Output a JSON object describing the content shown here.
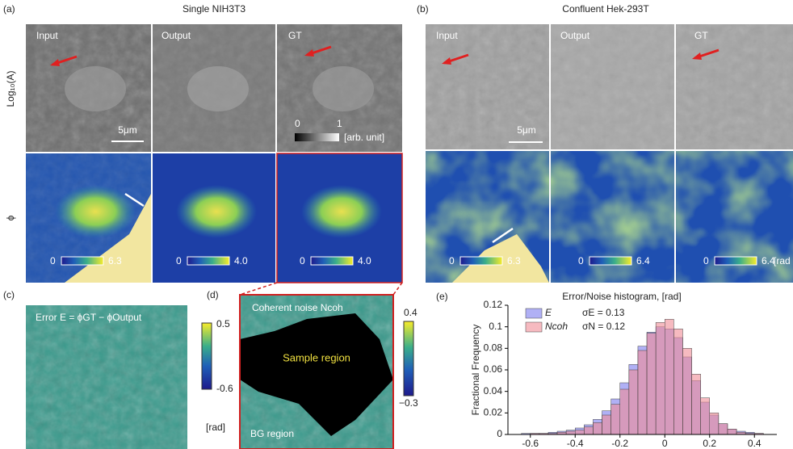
{
  "panel_a": {
    "label": "(a)",
    "title": "Single NIH3T3",
    "columns": [
      "Input",
      "Output",
      "GT"
    ],
    "row_labels": [
      "Log₁₀(A)",
      "ϕ"
    ],
    "scale_bar": "5μm",
    "gray_bar": {
      "min": "0",
      "max": "1",
      "unit": "[arb. unit]"
    },
    "phase_bars": [
      {
        "min": "0",
        "max": "6.3"
      },
      {
        "min": "0",
        "max": "4.0"
      },
      {
        "min": "0",
        "max": "4.0"
      }
    ]
  },
  "panel_b": {
    "label": "(b)",
    "title": "Confluent Hek-293T",
    "columns": [
      "Input",
      "Output",
      "GT"
    ],
    "scale_bar": "5μm",
    "phase_bars": [
      {
        "min": "0",
        "max": "6.3"
      },
      {
        "min": "0",
        "max": "6.4"
      },
      {
        "min": "0",
        "max": "6.4"
      }
    ],
    "unit": "[rad"
  },
  "panel_c": {
    "label": "(c)",
    "title": "Error E = ϕGT − ϕOutput",
    "cbar_max": "0.5",
    "cbar_min": "-0.6",
    "unit": "[rad]"
  },
  "panel_d": {
    "label": "(d)",
    "title": "Coherent noise Ncoh",
    "sample": "Sample region",
    "bg": "BG region",
    "cbar_max": "0.4",
    "cbar_min": "−0.3"
  },
  "chart_data": {
    "type": "histogram",
    "label": "(e)",
    "title": "Error/Noise histogram, [rad]",
    "y_label": "Fractional Frequency",
    "bins": [
      -0.64,
      -0.6,
      -0.56,
      -0.52,
      -0.48,
      -0.44,
      -0.4,
      -0.36,
      -0.32,
      -0.28,
      -0.24,
      -0.2,
      -0.16,
      -0.12,
      -0.08,
      -0.04,
      0,
      0.04,
      0.08,
      0.12,
      0.16,
      0.2,
      0.24,
      0.28,
      0.32,
      0.36,
      0.4,
      0.44
    ],
    "series": [
      {
        "name": "E",
        "color": "#7b7bef",
        "values": [
          0.001,
          0.001,
          0.001,
          0.002,
          0.003,
          0.004,
          0.006,
          0.009,
          0.014,
          0.022,
          0.033,
          0.048,
          0.065,
          0.082,
          0.095,
          0.1,
          0.098,
          0.09,
          0.072,
          0.05,
          0.03,
          0.018,
          0.01,
          0.005,
          0.003,
          0.002,
          0.001
        ]
      },
      {
        "name": "Ncoh",
        "color": "#f08c96",
        "values": [
          0,
          0.001,
          0.001,
          0.001,
          0.002,
          0.003,
          0.004,
          0.007,
          0.011,
          0.018,
          0.028,
          0.042,
          0.06,
          0.078,
          0.094,
          0.104,
          0.107,
          0.098,
          0.08,
          0.056,
          0.034,
          0.02,
          0.01,
          0.005,
          0.002,
          0.001,
          0.001
        ]
      }
    ],
    "annotations": [
      {
        "text": "σE = 0.13",
        "color": "#2a7fd0"
      },
      {
        "text": "σN = 0.12",
        "color": "#e0303a"
      }
    ],
    "legend": "upper left",
    "xlim": [
      -0.7,
      0.5
    ],
    "xticks": [
      -0.6,
      -0.4,
      -0.2,
      0,
      0.2,
      0.4
    ],
    "ylim": [
      0,
      0.12
    ],
    "yticks": [
      0,
      0.02,
      0.04,
      0.06,
      0.08,
      0.1,
      0.12
    ]
  }
}
